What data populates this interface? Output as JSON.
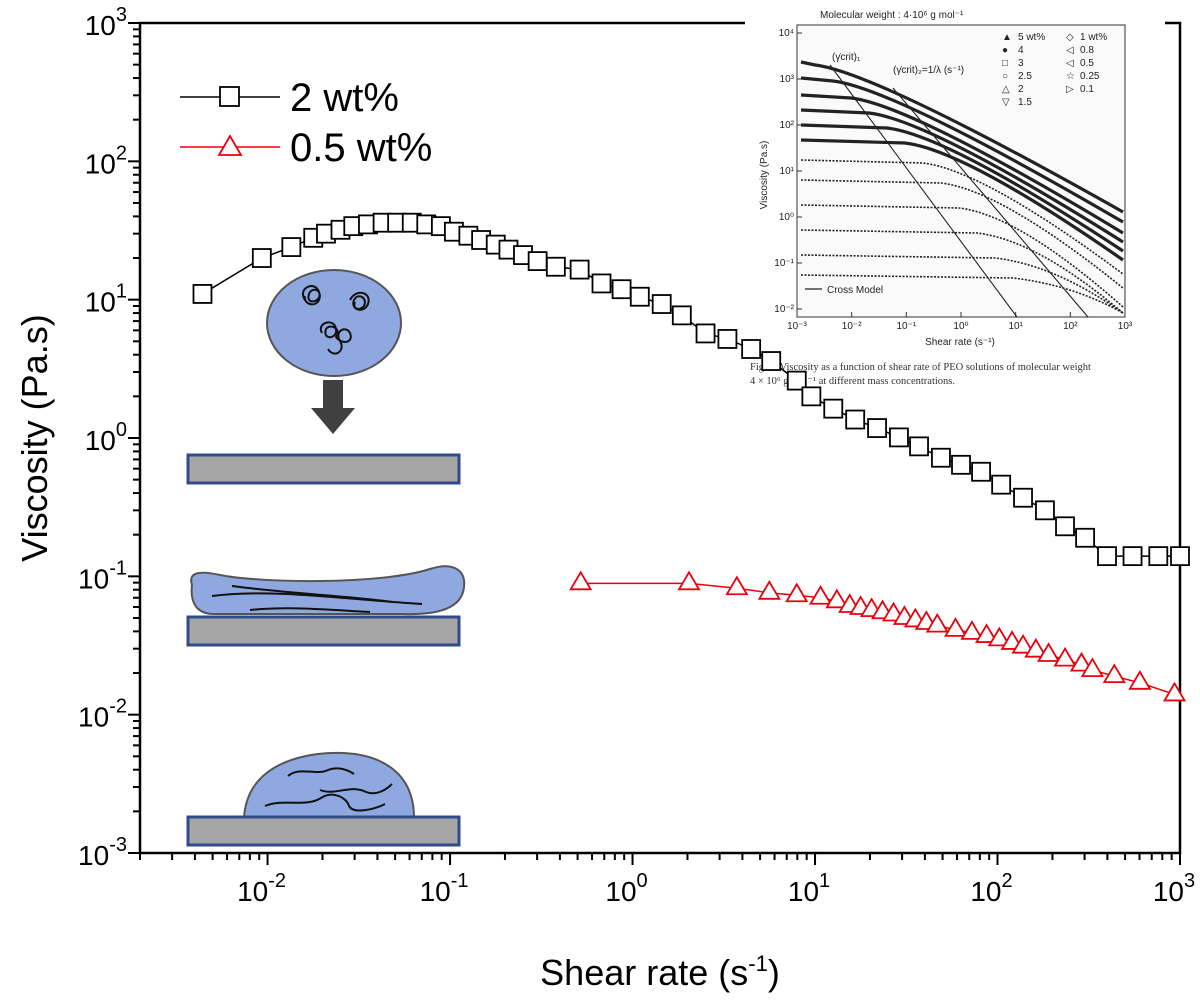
{
  "chart_data": {
    "type": "scatter",
    "xlabel": "Shear rate (s",
    "xlabel_sup": "-1",
    "xlabel_end": ")",
    "ylabel": "Viscosity (Pa.s)",
    "xscale": "log",
    "yscale": "log",
    "xlim": [
      0.002,
      1000
    ],
    "ylim": [
      0.001,
      1000
    ],
    "x_ticks": [
      {
        "base": "10",
        "exp": "-2"
      },
      {
        "base": "10",
        "exp": "-1"
      },
      {
        "base": "10",
        "exp": "0"
      },
      {
        "base": "10",
        "exp": "1"
      },
      {
        "base": "10",
        "exp": "2"
      },
      {
        "base": "10",
        "exp": "3"
      }
    ],
    "y_ticks": [
      {
        "base": "10",
        "exp": "-3"
      },
      {
        "base": "10",
        "exp": "-2"
      },
      {
        "base": "10",
        "exp": "-1"
      },
      {
        "base": "10",
        "exp": "0"
      },
      {
        "base": "10",
        "exp": "1"
      },
      {
        "base": "10",
        "exp": "2"
      },
      {
        "base": "10",
        "exp": "3"
      }
    ],
    "legend_position": "top-left",
    "series": [
      {
        "name": "2 wt%",
        "marker": "square",
        "color": "#000000",
        "x": [
          0.0044,
          0.0093,
          0.0135,
          0.0178,
          0.0209,
          0.0251,
          0.0295,
          0.0355,
          0.0427,
          0.0513,
          0.0617,
          0.0741,
          0.0891,
          0.105,
          0.126,
          0.148,
          0.178,
          0.209,
          0.251,
          0.302,
          0.38,
          0.513,
          0.676,
          0.871,
          1.096,
          1.445,
          1.862,
          2.512,
          3.311,
          4.467,
          5.754,
          7.943,
          9.55,
          12.59,
          16.6,
          21.88,
          28.84,
          37.15,
          48.98,
          63.1,
          81.28,
          104.7,
          138.0,
          182.0,
          234.4,
          302.0,
          398.1,
          549.5,
          760.6,
          1000.0
        ],
        "y": [
          11,
          20,
          24,
          28,
          30,
          32,
          34,
          35,
          36,
          36,
          36,
          35,
          34,
          31,
          29,
          27,
          25,
          23,
          21,
          19,
          17.3,
          16.5,
          13.1,
          11.9,
          10.5,
          9.3,
          7.7,
          5.7,
          5.2,
          4.4,
          3.6,
          2.6,
          2.0,
          1.63,
          1.36,
          1.18,
          1.01,
          0.87,
          0.72,
          0.64,
          0.57,
          0.46,
          0.37,
          0.3,
          0.23,
          0.19,
          0.14,
          0.14,
          0.14,
          0.14
        ]
      },
      {
        "name": "0.5 wt%",
        "marker": "triangle",
        "color": "#e8000b",
        "x": [
          0.52,
          2.04,
          3.73,
          5.62,
          7.94,
          10.72,
          13.18,
          15.49,
          17.78,
          20.42,
          23.44,
          26.92,
          30.9,
          35.48,
          40.74,
          46.77,
          58.88,
          72.44,
          87.1,
          102.3,
          120.2,
          138.0,
          162.2,
          190.5,
          234.4,
          288.4,
          331.1,
          436.5,
          602.6,
          933.3
        ],
        "y": [
          0.089,
          0.089,
          0.082,
          0.076,
          0.073,
          0.07,
          0.066,
          0.061,
          0.059,
          0.057,
          0.055,
          0.053,
          0.05,
          0.048,
          0.046,
          0.044,
          0.041,
          0.039,
          0.037,
          0.035,
          0.033,
          0.031,
          0.029,
          0.027,
          0.025,
          0.023,
          0.021,
          0.019,
          0.017,
          0.014
        ]
      }
    ]
  },
  "inset": {
    "title": "Molecular weight : 4·10⁶ g mol⁻¹",
    "ylabel": "Viscosity (Pa.s)",
    "xlabel": "Shear rate (s⁻¹)",
    "x_ticks": [
      "10⁻³",
      "10⁻²",
      "10⁻¹",
      "10⁰",
      "10¹",
      "10²",
      "10³"
    ],
    "y_ticks": [
      "10⁴",
      "10³",
      "10²",
      "10¹",
      "10⁰",
      "10⁻¹",
      "10⁻²"
    ],
    "legend_left": [
      "5 wt%",
      "4",
      "3",
      "2.5",
      "2",
      "1.5"
    ],
    "legend_right": [
      "1 wt%",
      "0.8",
      "0.5",
      "0.25",
      "0.1"
    ],
    "annotation_1": "(γ̇crit)₁",
    "annotation_2": "(γ̇crit)₂=1/λ (s⁻¹)",
    "model_label": "Cross Model",
    "caption_1": "Fig. 3. Viscosity as a function of shear rate of PEO solutions of molecular weight",
    "caption_2": "4 × 10⁶ g mol⁻¹ at different mass concentrations."
  },
  "colors": {
    "droplet": "#8fa9e0",
    "droplet_outline": "#555555",
    "substrate": "#a6a6a6",
    "substrate_outline": "#2f4b8c",
    "arrow": "#404040"
  }
}
